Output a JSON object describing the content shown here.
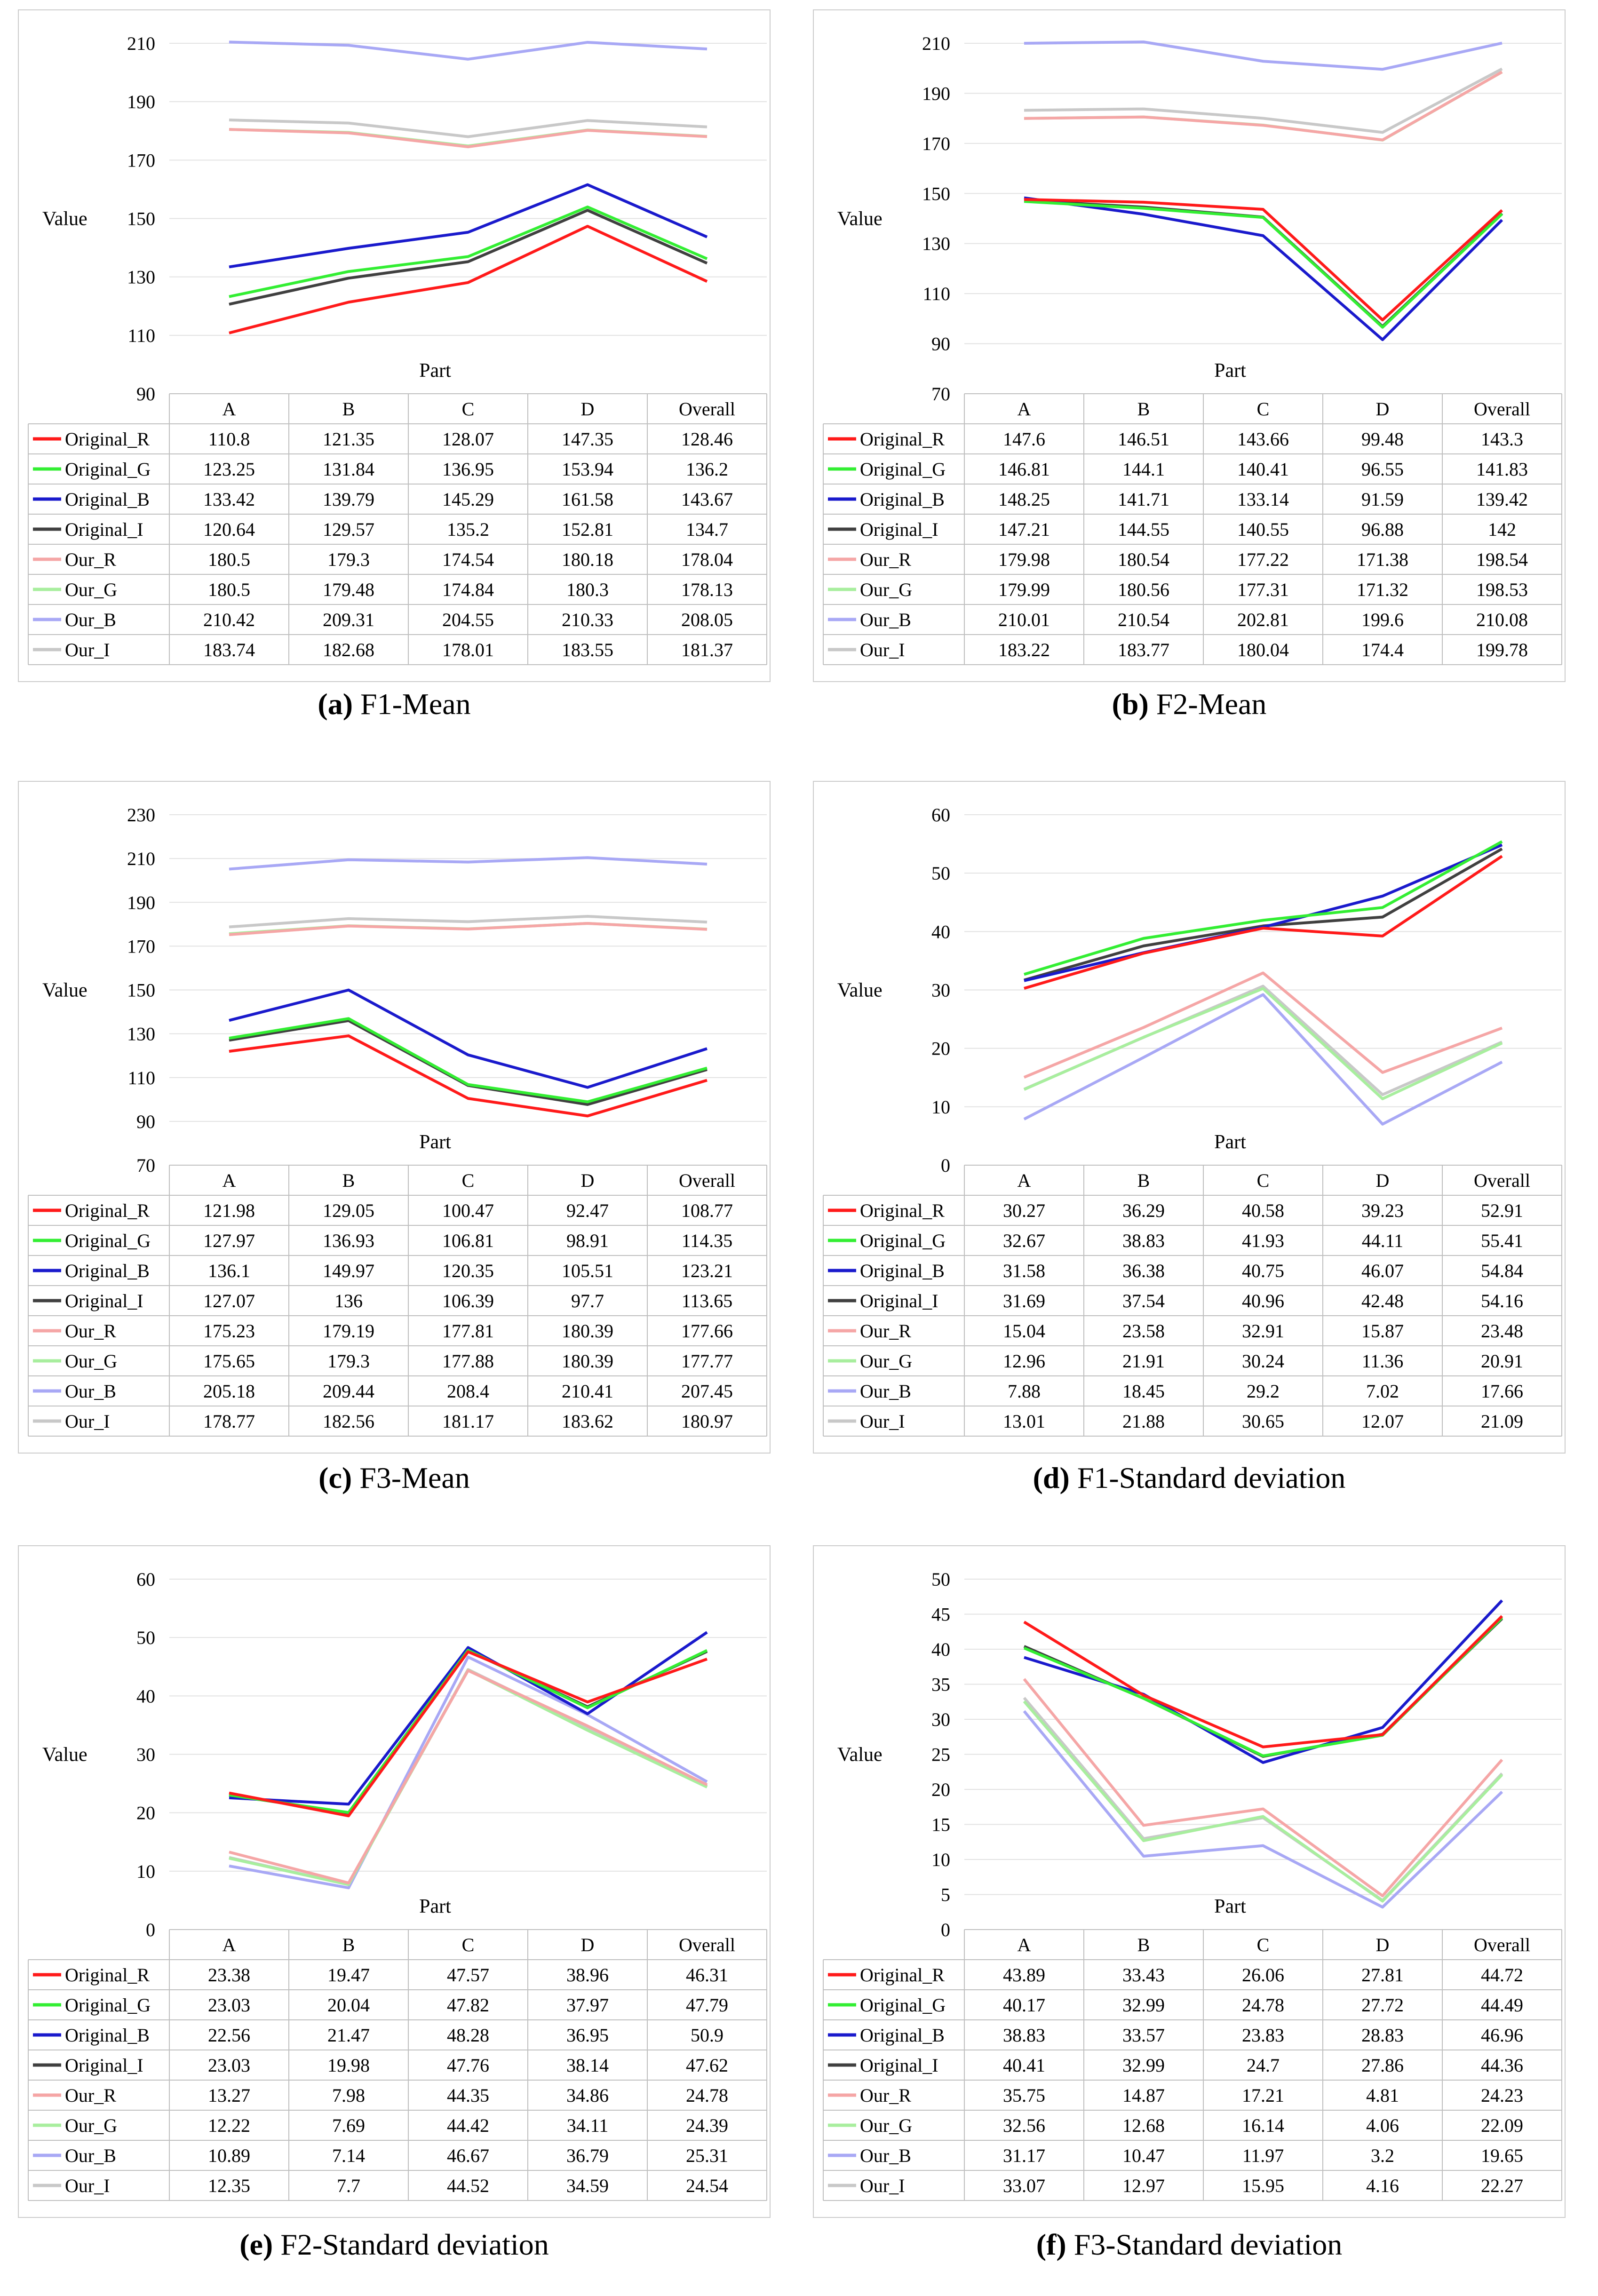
{
  "colors": {
    "Original_R": "#ff1a1a",
    "Original_G": "#33ee33",
    "Original_B": "#1a1acc",
    "Original_I": "#404040",
    "Our_R": "#f5a6a6",
    "Our_G": "#a8ee9e",
    "Our_B": "#a8a8f5",
    "Our_I": "#c8c8c8"
  },
  "chart_data": [
    {
      "type": "line",
      "caption_letter": "(a)",
      "caption_text": "F1-Mean",
      "ylabel": "Value",
      "xlabel": "Part",
      "ylim": [
        90,
        210
      ],
      "yticks": [
        "90",
        "110",
        "130",
        "150",
        "170",
        "190",
        "210"
      ],
      "categories": [
        "A",
        "B",
        "C",
        "D",
        "Overall"
      ],
      "series": [
        {
          "name": "Original_R",
          "values": [
            110.8,
            121.35,
            128.07,
            147.35,
            128.46
          ],
          "labels": [
            "110.8",
            "121.35",
            "128.07",
            "147.35",
            "128.46"
          ]
        },
        {
          "name": "Original_G",
          "values": [
            123.25,
            131.84,
            136.95,
            153.94,
            136.2
          ],
          "labels": [
            "123.25",
            "131.84",
            "136.95",
            "153.94",
            "136.2"
          ]
        },
        {
          "name": "Original_B",
          "values": [
            133.42,
            139.79,
            145.29,
            161.58,
            143.67
          ],
          "labels": [
            "133.42",
            "139.79",
            "145.29",
            "161.58",
            "143.67"
          ]
        },
        {
          "name": "Original_I",
          "values": [
            120.64,
            129.57,
            135.2,
            152.81,
            134.7
          ],
          "labels": [
            "120.64",
            "129.57",
            "135.2",
            "152.81",
            "134.7"
          ]
        },
        {
          "name": "Our_R",
          "values": [
            180.5,
            179.3,
            174.54,
            180.18,
            178.04
          ],
          "labels": [
            "180.5",
            "179.3",
            "174.54",
            "180.18",
            "178.04"
          ]
        },
        {
          "name": "Our_G",
          "values": [
            180.5,
            179.48,
            174.84,
            180.3,
            178.13
          ],
          "labels": [
            "180.5",
            "179.48",
            "174.84",
            "180.3",
            "178.13"
          ]
        },
        {
          "name": "Our_B",
          "values": [
            210.42,
            209.31,
            204.55,
            210.33,
            208.05
          ],
          "labels": [
            "210.42",
            "209.31",
            "204.55",
            "210.33",
            "208.05"
          ]
        },
        {
          "name": "Our_I",
          "values": [
            183.74,
            182.68,
            178.01,
            183.55,
            181.37
          ],
          "labels": [
            "183.74",
            "182.68",
            "178.01",
            "183.55",
            "181.37"
          ]
        }
      ]
    },
    {
      "type": "line",
      "caption_letter": "(b)",
      "caption_text": "F2-Mean",
      "ylabel": "Value",
      "xlabel": "Part",
      "ylim": [
        70,
        210
      ],
      "yticks": [
        "70",
        "90",
        "110",
        "130",
        "150",
        "170",
        "190",
        "210"
      ],
      "categories": [
        "A",
        "B",
        "C",
        "D",
        "Overall"
      ],
      "series": [
        {
          "name": "Original_R",
          "values": [
            147.6,
            146.51,
            143.66,
            99.48,
            143.3
          ],
          "labels": [
            "147.6",
            "146.51",
            "143.66",
            "99.48",
            "143.3"
          ]
        },
        {
          "name": "Original_G",
          "values": [
            146.81,
            144.1,
            140.41,
            96.55,
            141.83
          ],
          "labels": [
            "146.81",
            "144.1",
            "140.41",
            "96.55",
            "141.83"
          ]
        },
        {
          "name": "Original_B",
          "values": [
            148.25,
            141.71,
            133.14,
            91.59,
            139.42
          ],
          "labels": [
            "148.25",
            "141.71",
            "133.14",
            "91.59",
            "139.42"
          ]
        },
        {
          "name": "Original_I",
          "values": [
            147.21,
            144.55,
            140.55,
            96.88,
            142
          ],
          "labels": [
            "147.21",
            "144.55",
            "140.55",
            "96.88",
            "142"
          ]
        },
        {
          "name": "Our_R",
          "values": [
            179.98,
            180.54,
            177.22,
            171.38,
            198.54
          ],
          "labels": [
            "179.98",
            "180.54",
            "177.22",
            "171.38",
            "198.54"
          ]
        },
        {
          "name": "Our_G",
          "values": [
            179.99,
            180.56,
            177.31,
            171.32,
            198.53
          ],
          "labels": [
            "179.99",
            "180.56",
            "177.31",
            "171.32",
            "198.53"
          ]
        },
        {
          "name": "Our_B",
          "values": [
            210.01,
            210.54,
            202.81,
            199.6,
            210.08
          ],
          "labels": [
            "210.01",
            "210.54",
            "202.81",
            "199.6",
            "210.08"
          ]
        },
        {
          "name": "Our_I",
          "values": [
            183.22,
            183.77,
            180.04,
            174.4,
            199.78
          ],
          "labels": [
            "183.22",
            "183.77",
            "180.04",
            "174.4",
            "199.78"
          ]
        }
      ]
    },
    {
      "type": "line",
      "caption_letter": "(c)",
      "caption_text": "F3-Mean",
      "ylabel": "Value",
      "xlabel": "Part",
      "ylim": [
        70,
        230
      ],
      "yticks": [
        "70",
        "90",
        "110",
        "130",
        "150",
        "170",
        "190",
        "210",
        "230"
      ],
      "categories": [
        "A",
        "B",
        "C",
        "D",
        "Overall"
      ],
      "series": [
        {
          "name": "Original_R",
          "values": [
            121.98,
            129.05,
            100.47,
            92.47,
            108.77
          ],
          "labels": [
            "121.98",
            "129.05",
            "100.47",
            "92.47",
            "108.77"
          ]
        },
        {
          "name": "Original_G",
          "values": [
            127.97,
            136.93,
            106.81,
            98.91,
            114.35
          ],
          "labels": [
            "127.97",
            "136.93",
            "106.81",
            "98.91",
            "114.35"
          ]
        },
        {
          "name": "Original_B",
          "values": [
            136.1,
            149.97,
            120.35,
            105.51,
            123.21
          ],
          "labels": [
            "136.1",
            "149.97",
            "120.35",
            "105.51",
            "123.21"
          ]
        },
        {
          "name": "Original_I",
          "values": [
            127.07,
            136,
            106.39,
            97.7,
            113.65
          ],
          "labels": [
            "127.07",
            "136",
            "106.39",
            "97.7",
            "113.65"
          ]
        },
        {
          "name": "Our_R",
          "values": [
            175.23,
            179.19,
            177.81,
            180.39,
            177.66
          ],
          "labels": [
            "175.23",
            "179.19",
            "177.81",
            "180.39",
            "177.66"
          ]
        },
        {
          "name": "Our_G",
          "values": [
            175.65,
            179.3,
            177.88,
            180.39,
            177.77
          ],
          "labels": [
            "175.65",
            "179.3",
            "177.88",
            "180.39",
            "177.77"
          ]
        },
        {
          "name": "Our_B",
          "values": [
            205.18,
            209.44,
            208.4,
            210.41,
            207.45
          ],
          "labels": [
            "205.18",
            "209.44",
            "208.4",
            "210.41",
            "207.45"
          ]
        },
        {
          "name": "Our_I",
          "values": [
            178.77,
            182.56,
            181.17,
            183.62,
            180.97
          ],
          "labels": [
            "178.77",
            "182.56",
            "181.17",
            "183.62",
            "180.97"
          ]
        }
      ]
    },
    {
      "type": "line",
      "caption_letter": "(d)",
      "caption_text": "F1-Standard deviation",
      "ylabel": "Value",
      "xlabel": "Part",
      "ylim": [
        0,
        60
      ],
      "yticks": [
        "0",
        "10",
        "20",
        "30",
        "40",
        "50",
        "60"
      ],
      "categories": [
        "A",
        "B",
        "C",
        "D",
        "Overall"
      ],
      "series": [
        {
          "name": "Original_R",
          "values": [
            30.27,
            36.29,
            40.58,
            39.23,
            52.91
          ],
          "labels": [
            "30.27",
            "36.29",
            "40.58",
            "39.23",
            "52.91"
          ]
        },
        {
          "name": "Original_G",
          "values": [
            32.67,
            38.83,
            41.93,
            44.11,
            55.41
          ],
          "labels": [
            "32.67",
            "38.83",
            "41.93",
            "44.11",
            "55.41"
          ]
        },
        {
          "name": "Original_B",
          "values": [
            31.58,
            36.38,
            40.75,
            46.07,
            54.84
          ],
          "labels": [
            "31.58",
            "36.38",
            "40.75",
            "46.07",
            "54.84"
          ]
        },
        {
          "name": "Original_I",
          "values": [
            31.69,
            37.54,
            40.96,
            42.48,
            54.16
          ],
          "labels": [
            "31.69",
            "37.54",
            "40.96",
            "42.48",
            "54.16"
          ]
        },
        {
          "name": "Our_R",
          "values": [
            15.04,
            23.58,
            32.91,
            15.87,
            23.48
          ],
          "labels": [
            "15.04",
            "23.58",
            "32.91",
            "15.87",
            "23.48"
          ]
        },
        {
          "name": "Our_G",
          "values": [
            12.96,
            21.91,
            30.24,
            11.36,
            20.91
          ],
          "labels": [
            "12.96",
            "21.91",
            "30.24",
            "11.36",
            "20.91"
          ]
        },
        {
          "name": "Our_B",
          "values": [
            7.88,
            18.45,
            29.2,
            7.02,
            17.66
          ],
          "labels": [
            "7.88",
            "18.45",
            "29.2",
            "7.02",
            "17.66"
          ]
        },
        {
          "name": "Our_I",
          "values": [
            13.01,
            21.88,
            30.65,
            12.07,
            21.09
          ],
          "labels": [
            "13.01",
            "21.88",
            "30.65",
            "12.07",
            "21.09"
          ]
        }
      ]
    },
    {
      "type": "line",
      "caption_letter": "(e)",
      "caption_text": "F2-Standard deviation",
      "ylabel": "Value",
      "xlabel": "Part",
      "ylim": [
        0,
        60
      ],
      "yticks": [
        "0",
        "10",
        "20",
        "30",
        "40",
        "50",
        "60"
      ],
      "categories": [
        "A",
        "B",
        "C",
        "D",
        "Overall"
      ],
      "series": [
        {
          "name": "Original_R",
          "values": [
            23.38,
            19.47,
            47.57,
            38.96,
            46.31
          ],
          "labels": [
            "23.38",
            "19.47",
            "47.57",
            "38.96",
            "46.31"
          ]
        },
        {
          "name": "Original_G",
          "values": [
            23.03,
            20.04,
            47.82,
            37.97,
            47.79
          ],
          "labels": [
            "23.03",
            "20.04",
            "47.82",
            "37.97",
            "47.79"
          ]
        },
        {
          "name": "Original_B",
          "values": [
            22.56,
            21.47,
            48.28,
            36.95,
            50.9
          ],
          "labels": [
            "22.56",
            "21.47",
            "48.28",
            "36.95",
            "50.9"
          ]
        },
        {
          "name": "Original_I",
          "values": [
            23.03,
            19.98,
            47.76,
            38.14,
            47.62
          ],
          "labels": [
            "23.03",
            "19.98",
            "47.76",
            "38.14",
            "47.62"
          ]
        },
        {
          "name": "Our_R",
          "values": [
            13.27,
            7.98,
            44.35,
            34.86,
            24.78
          ],
          "labels": [
            "13.27",
            "7.98",
            "44.35",
            "34.86",
            "24.78"
          ]
        },
        {
          "name": "Our_G",
          "values": [
            12.22,
            7.69,
            44.42,
            34.11,
            24.39
          ],
          "labels": [
            "12.22",
            "7.69",
            "44.42",
            "34.11",
            "24.39"
          ]
        },
        {
          "name": "Our_B",
          "values": [
            10.89,
            7.14,
            46.67,
            36.79,
            25.31
          ],
          "labels": [
            "10.89",
            "7.14",
            "46.67",
            "36.79",
            "25.31"
          ]
        },
        {
          "name": "Our_I",
          "values": [
            12.35,
            7.7,
            44.52,
            34.59,
            24.54
          ],
          "labels": [
            "12.35",
            "7.7",
            "44.52",
            "34.59",
            "24.54"
          ]
        }
      ]
    },
    {
      "type": "line",
      "caption_letter": "(f)",
      "caption_text": "F3-Standard deviation",
      "ylabel": "Value",
      "xlabel": "Part",
      "ylim": [
        0,
        50
      ],
      "yticks": [
        "0",
        "5",
        "10",
        "15",
        "20",
        "25",
        "30",
        "35",
        "40",
        "45",
        "50"
      ],
      "categories": [
        "A",
        "B",
        "C",
        "D",
        "Overall"
      ],
      "series": [
        {
          "name": "Original_R",
          "values": [
            43.89,
            33.43,
            26.06,
            27.81,
            44.72
          ],
          "labels": [
            "43.89",
            "33.43",
            "26.06",
            "27.81",
            "44.72"
          ]
        },
        {
          "name": "Original_G",
          "values": [
            40.17,
            32.99,
            24.78,
            27.72,
            44.49
          ],
          "labels": [
            "40.17",
            "32.99",
            "24.78",
            "27.72",
            "44.49"
          ]
        },
        {
          "name": "Original_B",
          "values": [
            38.83,
            33.57,
            23.83,
            28.83,
            46.96
          ],
          "labels": [
            "38.83",
            "33.57",
            "23.83",
            "28.83",
            "46.96"
          ]
        },
        {
          "name": "Original_I",
          "values": [
            40.41,
            32.99,
            24.7,
            27.86,
            44.36
          ],
          "labels": [
            "40.41",
            "32.99",
            "24.7",
            "27.86",
            "44.36"
          ]
        },
        {
          "name": "Our_R",
          "values": [
            35.75,
            14.87,
            17.21,
            4.81,
            24.23
          ],
          "labels": [
            "35.75",
            "14.87",
            "17.21",
            "4.81",
            "24.23"
          ]
        },
        {
          "name": "Our_G",
          "values": [
            32.56,
            12.68,
            16.14,
            4.06,
            22.09
          ],
          "labels": [
            "32.56",
            "12.68",
            "16.14",
            "4.06",
            "22.09"
          ]
        },
        {
          "name": "Our_B",
          "values": [
            31.17,
            10.47,
            11.97,
            3.2,
            19.65
          ],
          "labels": [
            "31.17",
            "10.47",
            "11.97",
            "3.2",
            "19.65"
          ]
        },
        {
          "name": "Our_I",
          "values": [
            33.07,
            12.97,
            15.95,
            4.16,
            22.27
          ],
          "labels": [
            "33.07",
            "12.97",
            "15.95",
            "4.16",
            "22.27"
          ]
        }
      ]
    }
  ]
}
